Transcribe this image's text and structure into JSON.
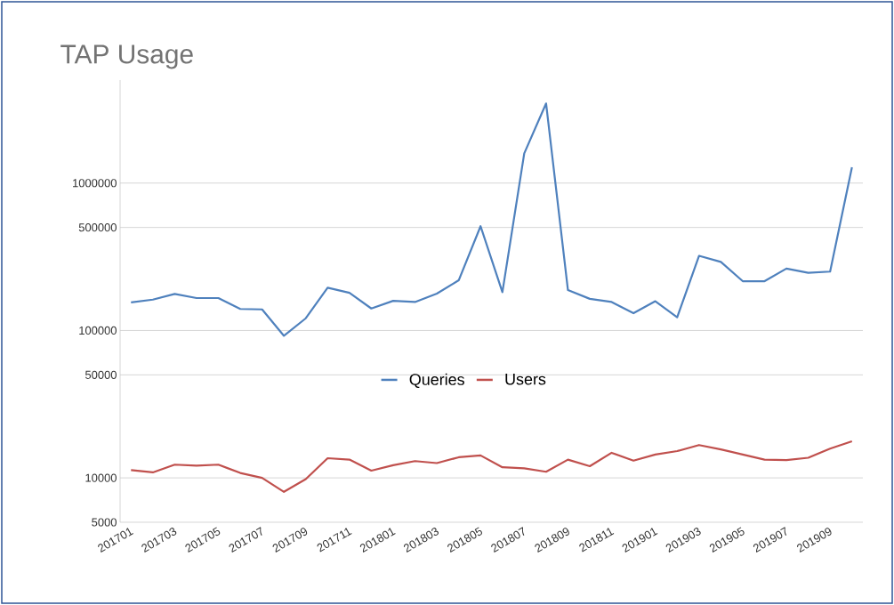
{
  "chart_data": {
    "type": "line",
    "title": "TAP Usage",
    "categories": [
      "201701",
      null,
      "201703",
      null,
      "201705",
      null,
      "201707",
      null,
      "201709",
      null,
      "201711",
      null,
      "201801",
      null,
      "201803",
      null,
      "201805",
      null,
      "201807",
      null,
      "201809",
      null,
      "201811",
      null,
      "201901",
      null,
      "201903",
      null,
      "201905",
      null,
      "201907",
      null,
      "201909",
      null
    ],
    "series": [
      {
        "name": "Queries",
        "color": "#4f81bd",
        "values": [
          155000,
          162000,
          177000,
          166000,
          166000,
          140000,
          139000,
          92000,
          121000,
          195000,
          180000,
          141000,
          159000,
          156000,
          178000,
          219000,
          510000,
          182000,
          1590000,
          3470000,
          188000,
          164000,
          156000,
          131000,
          158000,
          123000,
          321000,
          292000,
          216000,
          216000,
          263000,
          246000,
          251000,
          1280000
        ]
      },
      {
        "name": "Users",
        "color": "#c0504d",
        "values": [
          11300,
          10900,
          12300,
          12100,
          12300,
          10800,
          10000,
          8040,
          9800,
          13600,
          13300,
          11200,
          12200,
          13000,
          12600,
          13800,
          14200,
          11800,
          11600,
          11000,
          13300,
          12000,
          14800,
          13100,
          14400,
          15200,
          16700,
          15600,
          14400,
          13300,
          13200,
          13700,
          15800,
          17700
        ]
      }
    ],
    "log": "y",
    "ylim": [
      5000,
      5000000
    ],
    "yticks": [
      5000,
      10000,
      50000,
      100000,
      500000,
      1000000
    ],
    "grid": "y",
    "legend": "center",
    "marker": "none",
    "line_style": "solid"
  }
}
